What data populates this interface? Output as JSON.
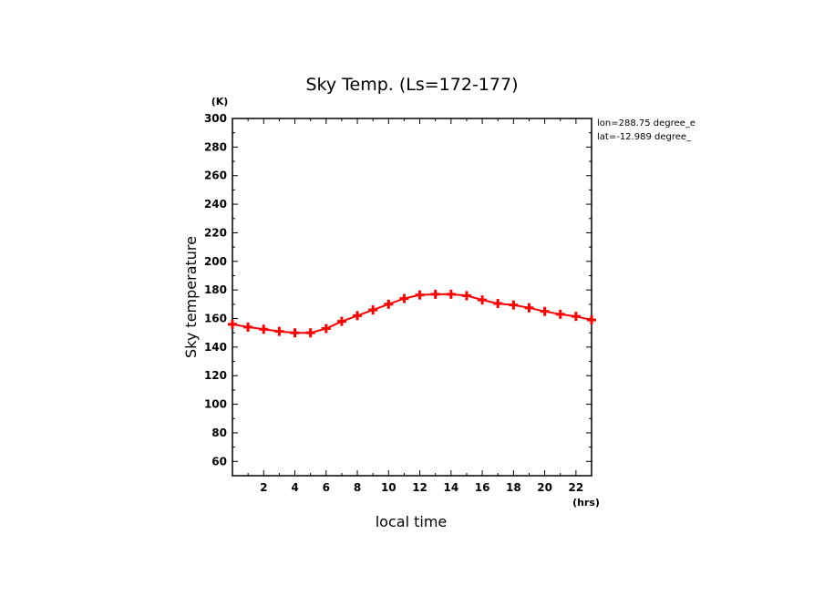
{
  "chart_data": {
    "type": "line",
    "title": "Sky Temp. (Ls=172-177)",
    "xlabel": "local time",
    "ylabel": "Sky temperature",
    "x_unit": "(hrs)",
    "y_unit": "(K)",
    "xlim": [
      0,
      23
    ],
    "ylim": [
      50,
      300
    ],
    "x_ticks": [
      2,
      4,
      6,
      8,
      10,
      12,
      14,
      16,
      18,
      20,
      22
    ],
    "y_ticks": [
      60,
      80,
      100,
      120,
      140,
      160,
      180,
      200,
      220,
      240,
      260,
      280,
      300
    ],
    "annotations": [
      "lon=288.75 degree_e",
      "lat=-12.989 degree_"
    ],
    "grid": false,
    "series": [
      {
        "color": "#ff0000",
        "marker": "plus",
        "x": [
          0.0,
          1.0,
          2.0,
          3.0,
          4.0,
          5.0,
          6.0,
          7.0,
          8.0,
          9.0,
          10.0,
          11.0,
          12.0,
          13.0,
          14.0,
          15.0,
          16.0,
          17.0,
          18.0,
          19.0,
          20.0,
          21.0,
          22.0,
          23.0
        ],
        "values": [
          156,
          154,
          152.5,
          151,
          150,
          150,
          153,
          158,
          162,
          166,
          170,
          174,
          176.5,
          177,
          177,
          176,
          173,
          170.5,
          169.5,
          167.5,
          165,
          163,
          161.5,
          159
        ]
      }
    ]
  }
}
